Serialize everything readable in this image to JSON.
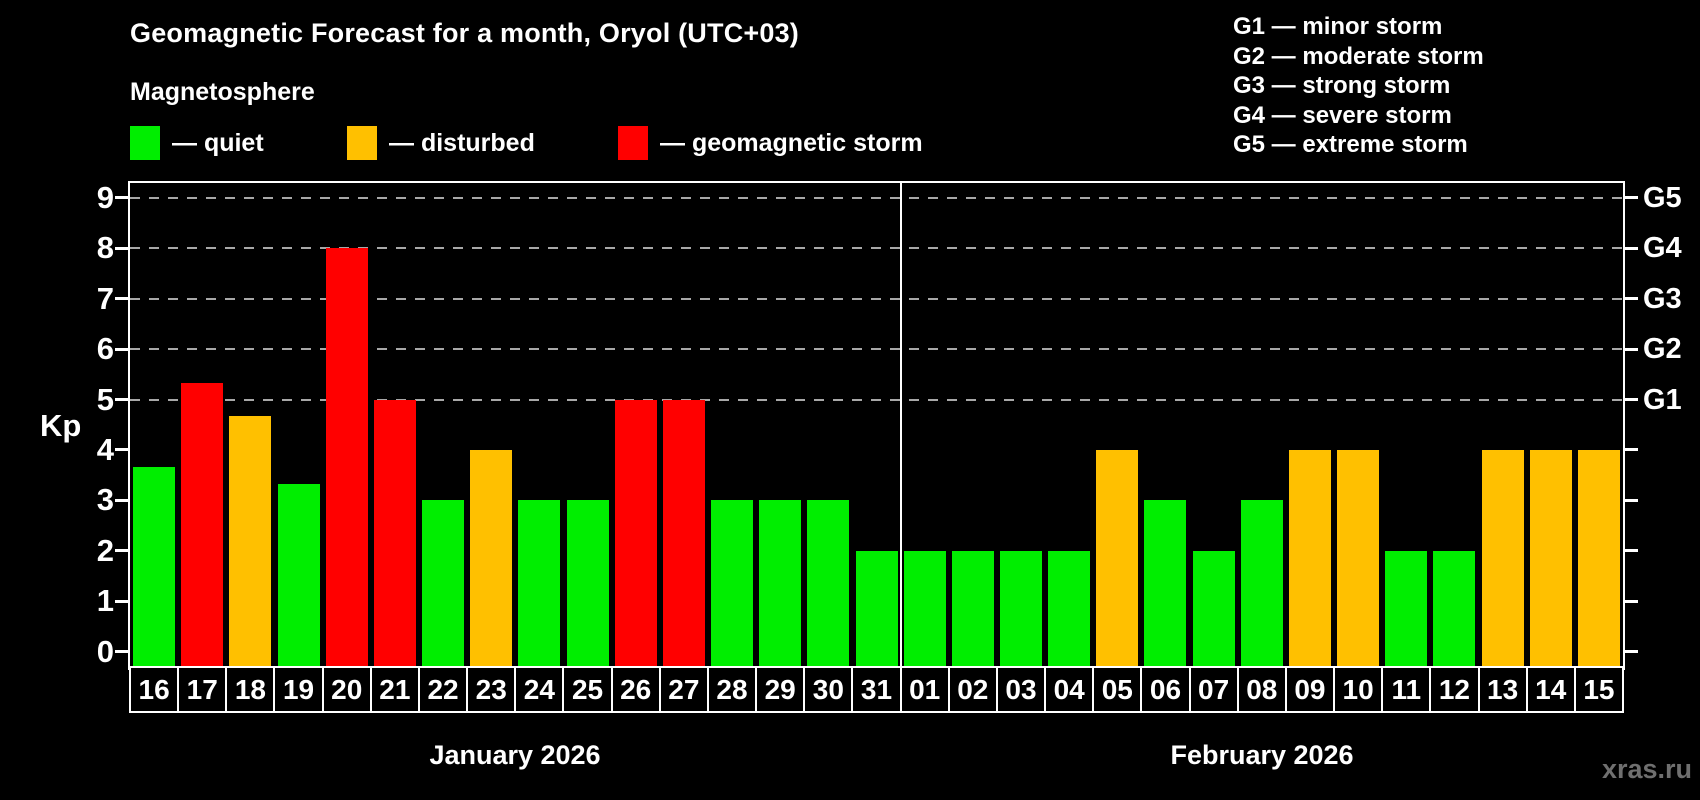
{
  "title": "Geomagnetic Forecast for a month, Oryol (UTC+03)",
  "subtitle": "Magnetosphere",
  "kp_legend": [
    {
      "status": "quiet",
      "label": "— quiet",
      "color": "#00ee00"
    },
    {
      "status": "disturbed",
      "label": "— disturbed",
      "color": "#ffc000"
    },
    {
      "status": "storm",
      "label": "— geomagnetic storm",
      "color": "#ff0000"
    }
  ],
  "storm_scale": [
    "G1 — minor storm",
    "G2 — moderate storm",
    "G3 — strong storm",
    "G4 — severe storm",
    "G5 — extreme storm"
  ],
  "y_axis": {
    "label": "Kp",
    "ticks": [
      0,
      1,
      2,
      3,
      4,
      5,
      6,
      7,
      8,
      9
    ]
  },
  "right_axis": {
    "labels": [
      "G1",
      "G2",
      "G3",
      "G4",
      "G5"
    ],
    "values": [
      5,
      6,
      7,
      8,
      9
    ]
  },
  "months": [
    {
      "label": "January 2026",
      "days": 16
    },
    {
      "label": "February 2026",
      "days": 15
    }
  ],
  "watermark": "xras.ru",
  "colors": {
    "quiet": "#00ee00",
    "disturbed": "#ffc000",
    "storm": "#ff0000",
    "background": "#000000",
    "grid": "#a8a8a8",
    "axis": "#ffffff",
    "watermark": "#6f6f6f"
  },
  "chart_data": {
    "type": "bar",
    "title": "Geomagnetic Forecast for a month, Oryol (UTC+03)",
    "xlabel": "",
    "ylabel": "Kp",
    "ylim": [
      -0.35,
      9.35
    ],
    "grid_values": [
      5,
      6,
      7,
      8,
      9
    ],
    "legend_position": "top-left",
    "categories": [
      "16",
      "17",
      "18",
      "19",
      "20",
      "21",
      "22",
      "23",
      "24",
      "25",
      "26",
      "27",
      "28",
      "29",
      "30",
      "31",
      "01",
      "02",
      "03",
      "04",
      "05",
      "06",
      "07",
      "08",
      "09",
      "10",
      "11",
      "12",
      "13",
      "14",
      "15"
    ],
    "values": [
      3.67,
      5.33,
      4.67,
      3.33,
      8,
      5,
      3,
      4,
      3,
      3,
      5,
      5,
      3,
      3,
      3,
      2,
      2,
      2,
      2,
      2,
      4,
      3,
      2,
      3,
      4,
      4,
      2,
      2,
      4,
      4,
      4
    ],
    "statuses": [
      "quiet",
      "storm",
      "disturbed",
      "quiet",
      "storm",
      "storm",
      "quiet",
      "disturbed",
      "quiet",
      "quiet",
      "storm",
      "storm",
      "quiet",
      "quiet",
      "quiet",
      "quiet",
      "quiet",
      "quiet",
      "quiet",
      "quiet",
      "disturbed",
      "quiet",
      "quiet",
      "quiet",
      "disturbed",
      "disturbed",
      "quiet",
      "quiet",
      "disturbed",
      "disturbed",
      "disturbed"
    ]
  }
}
